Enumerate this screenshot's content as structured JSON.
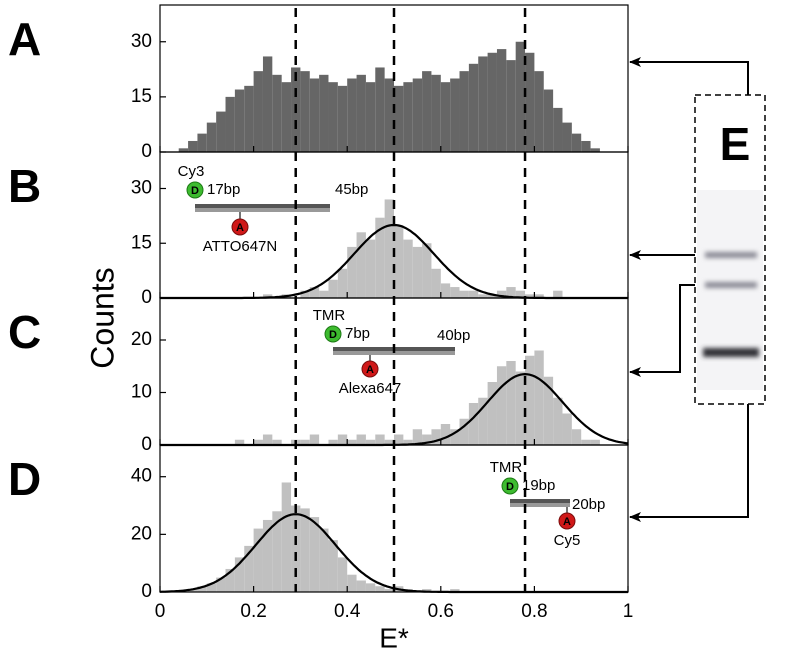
{
  "x_axis": {
    "label": "E*",
    "xlim": [
      0,
      1
    ],
    "xticks": [
      0,
      0.2,
      0.4,
      0.6,
      0.8,
      1
    ]
  },
  "y_label": "Counts",
  "reference_lines": [
    0.29,
    0.5,
    0.78
  ],
  "chart_data": [
    {
      "type": "histogram",
      "panel": "A",
      "color": "#666666",
      "bins": [
        0,
        0.02,
        0.04,
        0.06,
        0.08,
        0.1,
        0.12,
        0.14,
        0.16,
        0.18,
        0.2,
        0.22,
        0.24,
        0.26,
        0.28,
        0.3,
        0.32,
        0.34,
        0.36,
        0.38,
        0.4,
        0.42,
        0.44,
        0.46,
        0.48,
        0.5,
        0.52,
        0.54,
        0.56,
        0.58,
        0.6,
        0.62,
        0.64,
        0.66,
        0.68,
        0.7,
        0.72,
        0.74,
        0.76,
        0.78,
        0.8,
        0.82,
        0.84,
        0.86,
        0.88,
        0.9,
        0.92,
        0.94,
        0.96,
        0.98,
        1
      ],
      "values": [
        0,
        0,
        1,
        3,
        5,
        8,
        11,
        15,
        17,
        18,
        22,
        26,
        21,
        19,
        23,
        22,
        20,
        21,
        19,
        18,
        20,
        21,
        19,
        23,
        20,
        18,
        19,
        20,
        22,
        21,
        19,
        20,
        22,
        24,
        26,
        27,
        28,
        25,
        30,
        27,
        22,
        17,
        12,
        8,
        5,
        3,
        1,
        0,
        0,
        0
      ],
      "ylim": [
        0,
        40
      ],
      "yticks": [
        0,
        15,
        30
      ]
    },
    {
      "type": "histogram",
      "panel": "B",
      "color": "#c0c0c0",
      "bins": [
        0,
        0.02,
        0.04,
        0.06,
        0.08,
        0.1,
        0.12,
        0.14,
        0.16,
        0.18,
        0.2,
        0.22,
        0.24,
        0.26,
        0.28,
        0.3,
        0.32,
        0.34,
        0.36,
        0.38,
        0.4,
        0.42,
        0.44,
        0.46,
        0.48,
        0.5,
        0.52,
        0.54,
        0.56,
        0.58,
        0.6,
        0.62,
        0.64,
        0.66,
        0.68,
        0.7,
        0.72,
        0.74,
        0.76,
        0.78,
        0.8,
        0.82,
        0.84,
        0.86,
        0.88,
        0.9,
        0.92,
        0.94,
        0.96,
        0.98,
        1
      ],
      "values": [
        0,
        0,
        0,
        0,
        0,
        0,
        0,
        0,
        0,
        0,
        0,
        1,
        0,
        1,
        0,
        2,
        3,
        2,
        5,
        8,
        14,
        18,
        16,
        22,
        27,
        20,
        16,
        14,
        15,
        8,
        4,
        3,
        2,
        2,
        1,
        1,
        2,
        3,
        2,
        1,
        1,
        0,
        2,
        0,
        0,
        0,
        0,
        0,
        0,
        0
      ],
      "ylim": [
        0,
        40
      ],
      "yticks": [
        0,
        15,
        30
      ],
      "fit": {
        "mean": 0.5,
        "sigma": 0.085,
        "amplitude": 20
      },
      "construct": {
        "donor": "Cy3",
        "donor_badge": "D",
        "donor_length": "17bp",
        "total_length": "45bp",
        "acceptor_badge": "A",
        "acceptor": "ATTO647N"
      }
    },
    {
      "type": "histogram",
      "panel": "C",
      "color": "#c0c0c0",
      "bins": [
        0,
        0.02,
        0.04,
        0.06,
        0.08,
        0.1,
        0.12,
        0.14,
        0.16,
        0.18,
        0.2,
        0.22,
        0.24,
        0.26,
        0.28,
        0.3,
        0.32,
        0.34,
        0.36,
        0.38,
        0.4,
        0.42,
        0.44,
        0.46,
        0.48,
        0.5,
        0.52,
        0.54,
        0.56,
        0.58,
        0.6,
        0.62,
        0.64,
        0.66,
        0.68,
        0.7,
        0.72,
        0.74,
        0.76,
        0.78,
        0.8,
        0.82,
        0.84,
        0.86,
        0.88,
        0.9,
        0.92,
        0.94,
        0.96,
        0.98,
        1
      ],
      "values": [
        0,
        0,
        0,
        0,
        0,
        0,
        0,
        0,
        1,
        0,
        1,
        2,
        1,
        0,
        1,
        1,
        2,
        0,
        1,
        2,
        1,
        2,
        1,
        2,
        1,
        2,
        1,
        3,
        2,
        3,
        4,
        3,
        5,
        8,
        9,
        12,
        15,
        16,
        14,
        17,
        18,
        13,
        9,
        6,
        3,
        1,
        1,
        0,
        0,
        0
      ],
      "ylim": [
        0,
        28
      ],
      "yticks": [
        0,
        10,
        20
      ],
      "fit": {
        "mean": 0.78,
        "sigma": 0.08,
        "amplitude": 13.5
      },
      "construct": {
        "donor": "TMR",
        "donor_badge": "D",
        "donor_length": "7bp",
        "total_length": "40bp",
        "acceptor_badge": "A",
        "acceptor": "Alexa647"
      }
    },
    {
      "type": "histogram",
      "panel": "D",
      "color": "#c0c0c0",
      "bins": [
        0,
        0.02,
        0.04,
        0.06,
        0.08,
        0.1,
        0.12,
        0.14,
        0.16,
        0.18,
        0.2,
        0.22,
        0.24,
        0.26,
        0.28,
        0.3,
        0.32,
        0.34,
        0.36,
        0.38,
        0.4,
        0.42,
        0.44,
        0.46,
        0.48,
        0.5,
        0.52,
        0.54,
        0.56,
        0.58,
        0.6,
        0.62,
        0.64,
        0.66,
        0.68,
        0.7,
        0.72,
        0.74,
        0.76,
        0.78,
        0.8,
        0.82,
        0.84,
        0.86,
        0.88,
        0.9,
        0.92,
        0.94,
        0.96,
        0.98,
        1
      ],
      "values": [
        0,
        0,
        0,
        1,
        2,
        3,
        5,
        8,
        12,
        16,
        22,
        25,
        28,
        38,
        30,
        29,
        26,
        22,
        18,
        12,
        6,
        4,
        3,
        2,
        1,
        2,
        1,
        0,
        1,
        0,
        0,
        1,
        0,
        0,
        0,
        0,
        0,
        0,
        0,
        0,
        0,
        0,
        0,
        0,
        0,
        0,
        0,
        0,
        0,
        0
      ],
      "ylim": [
        0,
        51
      ],
      "yticks": [
        0,
        20,
        40
      ],
      "fit": {
        "mean": 0.29,
        "sigma": 0.085,
        "amplitude": 27
      },
      "construct": {
        "donor": "TMR",
        "donor_badge": "D",
        "donor_length": "19bp",
        "total_length": "20bp",
        "acceptor_badge": "A",
        "acceptor": "Cy5"
      }
    }
  ],
  "gel": {
    "label": "E"
  }
}
